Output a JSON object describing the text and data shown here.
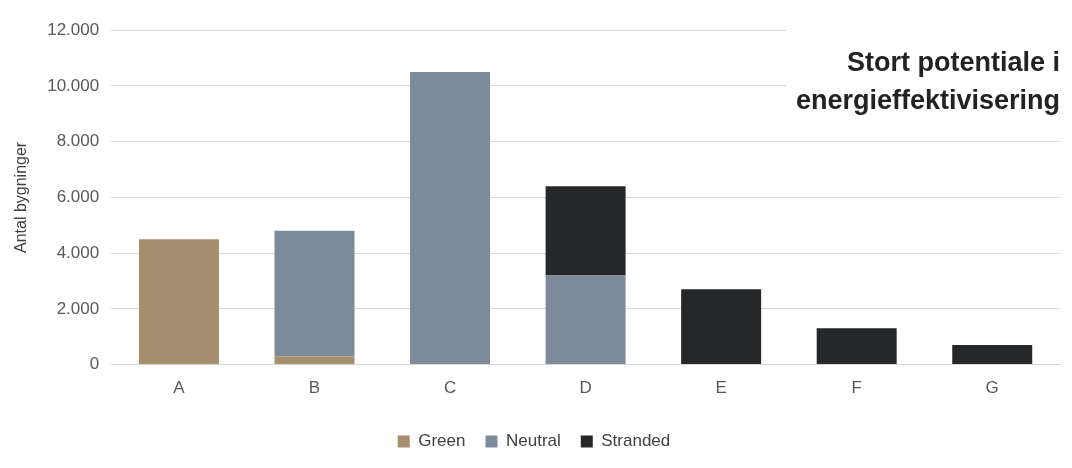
{
  "chart_data": {
    "type": "bar",
    "title": "Stort potentiale i energieffektivisering",
    "ylabel": "Antal bygninger",
    "categories": [
      "A",
      "B",
      "C",
      "D",
      "E",
      "F",
      "G"
    ],
    "series": [
      {
        "name": "Green",
        "color": "#a68f6e",
        "values": [
          4500,
          300,
          0,
          0,
          0,
          0,
          0
        ]
      },
      {
        "name": "Neutral",
        "color": "#7d8a9b",
        "values": [
          0,
          4500,
          10500,
          3200,
          0,
          0,
          0
        ]
      },
      {
        "name": "Stranded",
        "color": "#262729",
        "values": [
          0,
          0,
          0,
          3200,
          2700,
          1300,
          700
        ]
      }
    ],
    "stacked": true,
    "ylim": [
      0,
      12000
    ],
    "yticks": [
      {
        "value": 0,
        "label": "0"
      },
      {
        "value": 2000,
        "label": "2.000"
      },
      {
        "value": 4000,
        "label": "4.000"
      },
      {
        "value": 6000,
        "label": "6.000"
      },
      {
        "value": 8000,
        "label": "8.000"
      },
      {
        "value": 10000,
        "label": "10.000"
      },
      {
        "value": 12000,
        "label": "12.000"
      }
    ],
    "grid": "y",
    "legend": "bottom"
  }
}
